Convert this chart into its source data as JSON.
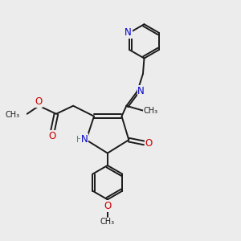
{
  "background_color": "#ececec",
  "bond_color": "#1a1a1a",
  "nitrogen_color": "#0000cc",
  "oxygen_color": "#cc0000",
  "teal_color": "#4a8a8a",
  "figsize": [
    3.0,
    3.0
  ],
  "dpi": 100,
  "xlim": [
    0,
    10
  ],
  "ylim": [
    0,
    10
  ]
}
